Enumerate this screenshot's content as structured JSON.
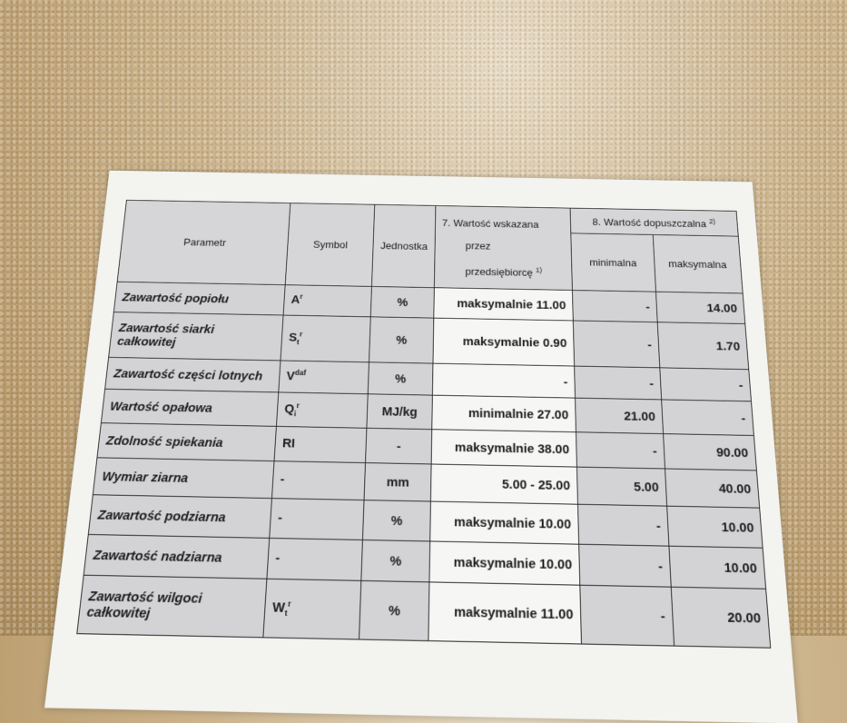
{
  "header": {
    "parametr": "Parametr",
    "symbol": "Symbol",
    "jednostka": "Jednostka",
    "col7_line1": "7. Wartość wskazana",
    "col7_line2": "przez",
    "col7_line3": "przedsiębiorcę",
    "col7_note": "1)",
    "col8": "8. Wartość dopuszczalna",
    "col8_note": "2)",
    "min": "minimalna",
    "max": "maksymalna"
  },
  "rows": [
    {
      "param": "Zawartość popiołu",
      "sym": "A",
      "sub": "",
      "sup": "r",
      "unit": "%",
      "declared": "maksymalnie 11.00",
      "min": "-",
      "max": "14.00"
    },
    {
      "param": "Zawartość siarki całkowitej",
      "sym": "S",
      "sub": "t",
      "sup": "r",
      "unit": "%",
      "declared": "maksymalnie 0.90",
      "min": "-",
      "max": "1.70"
    },
    {
      "param": "Zawartość części lotnych",
      "sym": "V",
      "sub": "",
      "sup": "daf",
      "unit": "%",
      "declared": "-",
      "min": "-",
      "max": "-"
    },
    {
      "param": "Wartość opałowa",
      "sym": "Q",
      "sub": "i",
      "sup": "r",
      "unit": "MJ/kg",
      "declared": "minimalnie 27.00",
      "min": "21.00",
      "max": "-"
    },
    {
      "param": "Zdolność spiekania",
      "sym": "RI",
      "sub": "",
      "sup": "",
      "unit": "-",
      "declared": "maksymalnie 38.00",
      "min": "-",
      "max": "90.00"
    },
    {
      "param": "Wymiar ziarna",
      "sym": "-",
      "sub": "",
      "sup": "",
      "unit": "mm",
      "declared": "5.00 - 25.00",
      "min": "5.00",
      "max": "40.00"
    },
    {
      "param": "Zawartość podziarna",
      "sym": "-",
      "sub": "",
      "sup": "",
      "unit": "%",
      "declared": "maksymalnie 10.00",
      "min": "-",
      "max": "10.00"
    },
    {
      "param": "Zawartość nadziarna",
      "sym": "-",
      "sub": "",
      "sup": "",
      "unit": "%",
      "declared": "maksymalnie 10.00",
      "min": "-",
      "max": "10.00"
    },
    {
      "param": "Zawartość wilgoci całkowitej",
      "sym": "W",
      "sub": "t",
      "sup": "r",
      "unit": "%",
      "declared": "maksymalnie 11.00",
      "min": "-",
      "max": "20.00"
    }
  ]
}
